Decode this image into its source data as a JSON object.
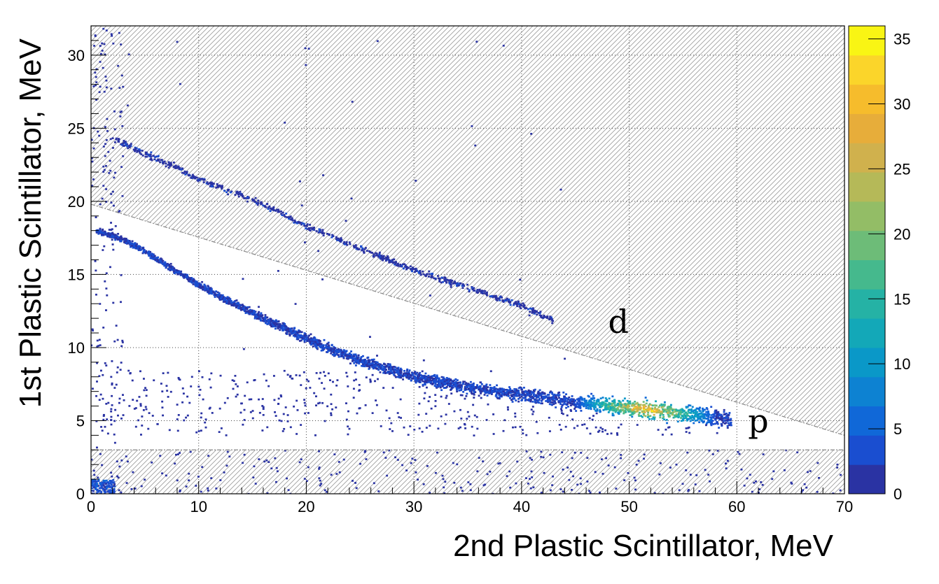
{
  "chart_data": {
    "type": "heatmap",
    "title": "",
    "xlabel": "2nd Plastic Scintillator, MeV",
    "ylabel": "1st Plastic Scintillator, MeV",
    "xlim": [
      0,
      70
    ],
    "ylim": [
      0,
      32
    ],
    "xticks": [
      0,
      10,
      20,
      30,
      40,
      50,
      60,
      70
    ],
    "yticks": [
      0,
      5,
      10,
      15,
      20,
      25,
      30
    ],
    "grid": true,
    "colorbar": {
      "range": [
        0,
        36
      ],
      "ticks": [
        0,
        5,
        10,
        15,
        20,
        25,
        30,
        35
      ],
      "palette": [
        "#2a33a3",
        "#1a4ed0",
        "#1068d8",
        "#0d82d2",
        "#0a98c8",
        "#13a8b8",
        "#25b2a5",
        "#45b98d",
        "#6dbc78",
        "#93bd66",
        "#b5b958",
        "#d0b14d",
        "#e7ad3a",
        "#f6bc2c",
        "#fbd52a",
        "#f9f514"
      ]
    },
    "cut_lines": [
      {
        "name": "d/p separation",
        "x": [
          0,
          70
        ],
        "y": [
          19.8,
          4.0
        ]
      },
      {
        "name": "low threshold",
        "x": [
          0,
          70
        ],
        "y": [
          3.0,
          3.0
        ]
      }
    ],
    "bands": [
      {
        "label": "d",
        "label_at": [
          49,
          11
        ],
        "x": [
          2,
          5,
          8,
          10,
          13,
          16,
          20,
          25,
          30,
          35,
          40,
          43
        ],
        "y": [
          24.3,
          23.3,
          22.3,
          21.5,
          20.7,
          19.8,
          18.3,
          16.8,
          15.3,
          14.1,
          12.9,
          11.8
        ]
      },
      {
        "label": "p",
        "label_at": [
          62,
          4.2
        ],
        "x": [
          0.5,
          3,
          5,
          8,
          10,
          13,
          16,
          20,
          25,
          30,
          35,
          40,
          45,
          50,
          55,
          59.5
        ],
        "y": [
          18.0,
          17.4,
          16.6,
          15.2,
          14.3,
          13.1,
          12.0,
          10.6,
          9.1,
          8.0,
          7.3,
          6.8,
          6.3,
          5.9,
          5.5,
          5.1
        ],
        "peak_x": [
          45,
          58
        ],
        "peak_value": 35
      }
    ]
  }
}
